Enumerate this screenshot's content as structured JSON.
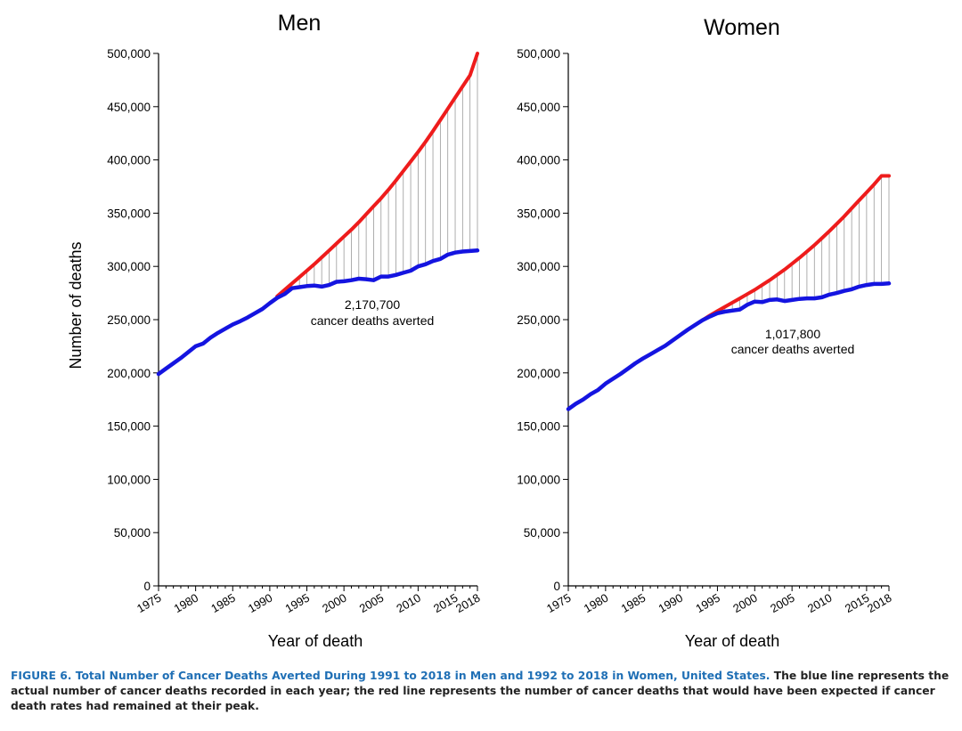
{
  "colors": {
    "expected": "#ee1c1c",
    "actual": "#1414e0",
    "drop": "#9a9a9a",
    "caption_accent": "#1f6fb5"
  },
  "chart_data": [
    {
      "type": "line",
      "title": "Men",
      "xlabel": "Year of death",
      "ylabel": "Number of deaths",
      "xlim": [
        1975,
        2018
      ],
      "ylim": [
        0,
        500000
      ],
      "x_ticks": [
        1975,
        1980,
        1985,
        1990,
        1995,
        2000,
        2005,
        2010,
        2015,
        2018
      ],
      "y_ticks": [
        0,
        50000,
        100000,
        150000,
        200000,
        250000,
        300000,
        350000,
        400000,
        450000,
        500000
      ],
      "y_tick_labels": [
        "0",
        "50,000",
        "100,000",
        "150,000",
        "200,000",
        "250,000",
        "300,000",
        "350,000",
        "400,000",
        "450,000",
        "500,000"
      ],
      "annotation": {
        "value": "2,170,700",
        "text": "cancer deaths averted",
        "at_year": 2000,
        "at_value": 265000
      },
      "series": [
        {
          "name": "Actual",
          "color": "#1414e0",
          "x": [
            1975,
            1976,
            1977,
            1978,
            1979,
            1980,
            1981,
            1982,
            1983,
            1984,
            1985,
            1986,
            1987,
            1988,
            1989,
            1990,
            1991,
            1992,
            1993,
            1994,
            1995,
            1996,
            1997,
            1998,
            1999,
            2000,
            2001,
            2002,
            2003,
            2004,
            2005,
            2006,
            2007,
            2008,
            2009,
            2010,
            2011,
            2012,
            2013,
            2014,
            2015,
            2016,
            2017,
            2018
          ],
          "values": [
            199000,
            204000,
            209000,
            214000,
            219500,
            225000,
            227500,
            233000,
            237500,
            241500,
            245500,
            248500,
            252000,
            256000,
            260000,
            265500,
            270500,
            274000,
            279500,
            280500,
            281500,
            282000,
            281000,
            282500,
            285500,
            286000,
            287000,
            288500,
            288000,
            287000,
            290500,
            290500,
            292000,
            294000,
            296000,
            300000,
            302000,
            305000,
            307000,
            311000,
            313000,
            314000,
            314500,
            315000
          ]
        },
        {
          "name": "Expected",
          "color": "#ee1c1c",
          "x": [
            1991,
            1992,
            1993,
            1994,
            1995,
            1996,
            1997,
            1998,
            1999,
            2000,
            2001,
            2002,
            2003,
            2004,
            2005,
            2006,
            2007,
            2008,
            2009,
            2010,
            2011,
            2012,
            2013,
            2014,
            2015,
            2016,
            2017,
            2018
          ],
          "values": [
            272000,
            278000,
            284000,
            290000,
            296000,
            302000,
            308500,
            315000,
            321500,
            328000,
            334500,
            341500,
            349000,
            356500,
            364000,
            372000,
            380500,
            389500,
            398500,
            407500,
            417000,
            427000,
            437500,
            448000,
            458500,
            469000,
            479500,
            500000
          ]
        }
      ]
    },
    {
      "type": "line",
      "title": "Women",
      "xlabel": "Year of death",
      "ylabel": "",
      "xlim": [
        1975,
        2018
      ],
      "ylim": [
        0,
        500000
      ],
      "x_ticks": [
        1975,
        1980,
        1985,
        1990,
        1995,
        2000,
        2005,
        2010,
        2015,
        2018
      ],
      "y_ticks": [
        0,
        50000,
        100000,
        150000,
        200000,
        250000,
        300000,
        350000,
        400000,
        450000,
        500000
      ],
      "y_tick_labels": [
        "0",
        "50,000",
        "100,000",
        "150,000",
        "200,000",
        "250,000",
        "300,000",
        "350,000",
        "400,000",
        "450,000",
        "500,000"
      ],
      "annotation": {
        "value": "1,017,800",
        "text": "cancer deaths averted",
        "at_year": 2005,
        "at_value": 235000
      },
      "series": [
        {
          "name": "Actual",
          "color": "#1414e0",
          "x": [
            1975,
            1976,
            1977,
            1978,
            1979,
            1980,
            1981,
            1982,
            1983,
            1984,
            1985,
            1986,
            1987,
            1988,
            1989,
            1990,
            1991,
            1992,
            1993,
            1994,
            1995,
            1996,
            1997,
            1998,
            1999,
            2000,
            2001,
            2002,
            2003,
            2004,
            2005,
            2006,
            2007,
            2008,
            2009,
            2010,
            2011,
            2012,
            2013,
            2014,
            2015,
            2016,
            2017,
            2018
          ],
          "values": [
            166000,
            171000,
            175000,
            180000,
            184000,
            190000,
            194500,
            199000,
            204000,
            209000,
            213500,
            217500,
            221500,
            225500,
            230500,
            235500,
            240500,
            245000,
            249500,
            253000,
            256000,
            257500,
            258500,
            259500,
            264000,
            267000,
            266500,
            268500,
            269000,
            267500,
            268500,
            269500,
            270000,
            270000,
            271000,
            273500,
            275000,
            277000,
            278500,
            281000,
            282500,
            283500,
            283500,
            284000
          ]
        },
        {
          "name": "Expected",
          "color": "#ee1c1c",
          "x": [
            1992,
            1993,
            1994,
            1995,
            1996,
            1997,
            1998,
            1999,
            2000,
            2001,
            2002,
            2003,
            2004,
            2005,
            2006,
            2007,
            2008,
            2009,
            2010,
            2011,
            2012,
            2013,
            2014,
            2015,
            2016,
            2017,
            2018
          ],
          "values": [
            245000,
            249500,
            254000,
            258000,
            262000,
            266000,
            270000,
            274000,
            278000,
            282500,
            287000,
            292000,
            297000,
            302500,
            308000,
            314000,
            320000,
            326500,
            333000,
            340000,
            347000,
            354500,
            362000,
            369500,
            377000,
            385000,
            385000
          ]
        }
      ]
    }
  ],
  "caption": {
    "label": "FIGURE 6.",
    "title": "Total Number of Cancer Deaths Averted During 1991 to 2018 in Men and 1992 to 2018 in Women, United States.",
    "text": "The blue line represents the actual number of cancer deaths recorded in each year; the red line represents the number of cancer deaths that would have been expected if cancer death rates had remained at their peak."
  }
}
